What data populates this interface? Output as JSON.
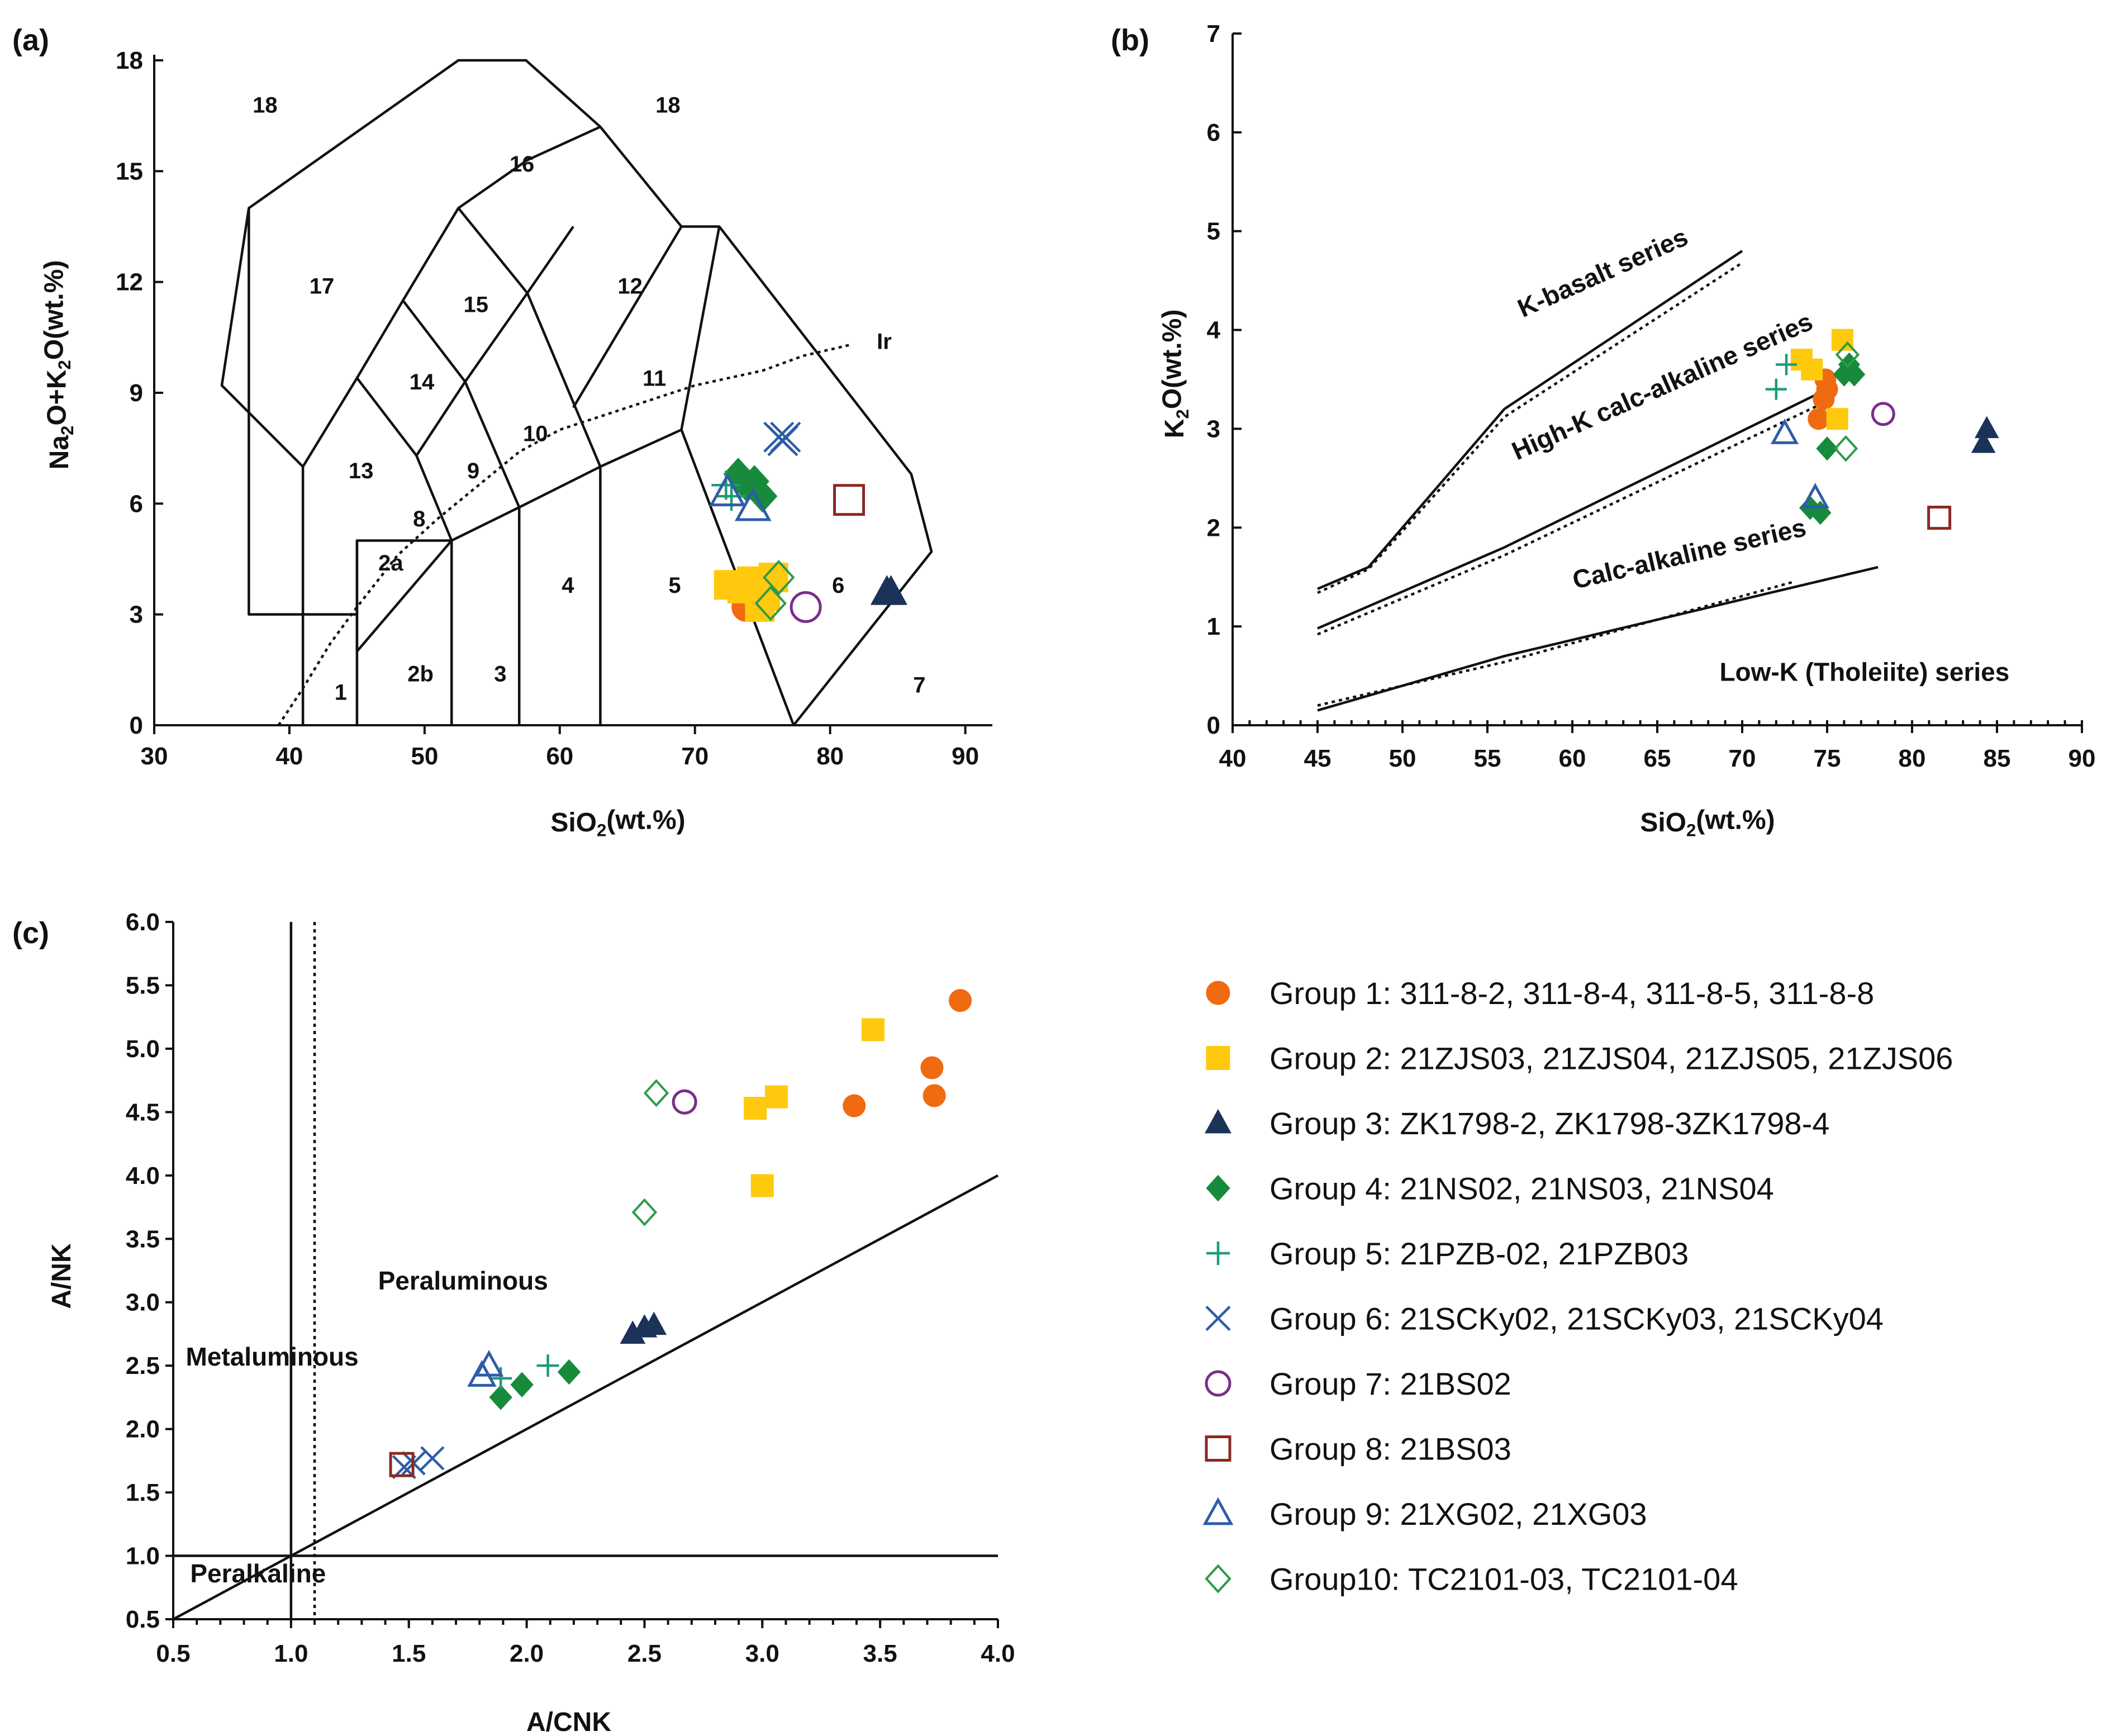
{
  "groups": [
    {
      "id": "g1",
      "legend": "Group 1: 311-8-2, 311-8-4, 311-8-5, 311-8-8",
      "marker": "circle",
      "filled": true,
      "color": "#F06A12"
    },
    {
      "id": "g2",
      "legend": "Group 2: 21ZJS03, 21ZJS04, 21ZJS05, 21ZJS06",
      "marker": "square",
      "filled": true,
      "color": "#FFC90E"
    },
    {
      "id": "g3",
      "legend": "Group 3: ZK1798-2, ZK1798-3ZK1798-4",
      "marker": "triangle",
      "filled": true,
      "color": "#1B3358"
    },
    {
      "id": "g4",
      "legend": "Group 4: 21NS02, 21NS03, 21NS04",
      "marker": "diamond",
      "filled": true,
      "color": "#178A3C"
    },
    {
      "id": "g5",
      "legend": "Group 5: 21PZB-02, 21PZB03",
      "marker": "plus",
      "filled": false,
      "color": "#1E9A7A"
    },
    {
      "id": "g6",
      "legend": "Group 6: 21SCKy02, 21SCKy03, 21SCKy04",
      "marker": "x",
      "filled": false,
      "color": "#2E5CA8"
    },
    {
      "id": "g7",
      "legend": "Group 7: 21BS02",
      "marker": "circle",
      "filled": false,
      "color": "#7A2D8C"
    },
    {
      "id": "g8",
      "legend": "Group 8: 21BS03",
      "marker": "square",
      "filled": false,
      "color": "#8A2A22"
    },
    {
      "id": "g9",
      "legend": "Group 9: 21XG02, 21XG03",
      "marker": "triangle",
      "filled": false,
      "color": "#2E5CA8"
    },
    {
      "id": "g10",
      "legend": "Group10: TC2101-03, TC2101-04",
      "marker": "diamond",
      "filled": false,
      "color": "#2E9A4A"
    }
  ],
  "chart_data": [
    {
      "panel": "(a)",
      "type": "scatter",
      "title": "",
      "xlabel": "SiO₂(wt.%)",
      "ylabel": "Na₂O+K₂O(wt.%)",
      "xlim": [
        30,
        92
      ],
      "ylim": [
        0,
        18
      ],
      "xticks": [
        30,
        40,
        50,
        60,
        70,
        80,
        90
      ],
      "yticks": [
        0,
        3,
        6,
        9,
        12,
        15,
        18
      ],
      "field_boundaries": [
        [
          [
            41,
            0
          ],
          [
            41,
            7
          ],
          [
            45,
            9.4
          ],
          [
            48.4,
            11.5
          ],
          [
            52.5,
            14
          ],
          [
            57.6,
            15.3
          ],
          [
            63,
            16.2
          ]
        ],
        [
          [
            45,
            0
          ],
          [
            45,
            5
          ],
          [
            52,
            5
          ],
          [
            57,
            5.9
          ],
          [
            63,
            7
          ],
          [
            69,
            8
          ],
          [
            77.3,
            0
          ]
        ],
        [
          [
            45,
            5
          ],
          [
            45,
            2
          ]
        ],
        [
          [
            45,
            2
          ],
          [
            52,
            5
          ],
          [
            49.4,
            7.3
          ],
          [
            45,
            9.4
          ]
        ],
        [
          [
            49.4,
            7.3
          ],
          [
            53,
            9.3
          ],
          [
            57.6,
            11.7
          ],
          [
            61,
            13.5
          ]
        ],
        [
          [
            53,
            9.3
          ],
          [
            48.4,
            11.5
          ]
        ],
        [
          [
            57.6,
            11.7
          ],
          [
            52.5,
            14
          ]
        ],
        [
          [
            52,
            5
          ],
          [
            52,
            0
          ]
        ],
        [
          [
            57,
            5.9
          ],
          [
            57,
            0
          ]
        ],
        [
          [
            63,
            7
          ],
          [
            63,
            0
          ]
        ],
        [
          [
            57,
            5.9
          ],
          [
            53,
            9.3
          ]
        ],
        [
          [
            63,
            7
          ],
          [
            57.6,
            11.7
          ]
        ],
        [
          [
            69,
            8
          ],
          [
            71.8,
            13.5
          ]
        ],
        [
          [
            61,
            8.6
          ],
          [
            69,
            13.5
          ]
        ],
        [
          [
            69,
            13.5
          ],
          [
            71.8,
            13.5
          ],
          [
            86,
            6.8
          ],
          [
            87.5,
            4.7
          ],
          [
            77.3,
            0
          ]
        ],
        [
          [
            45,
            3
          ],
          [
            37,
            3
          ],
          [
            37,
            14
          ],
          [
            35,
            9.2
          ],
          [
            41,
            7
          ]
        ],
        [
          [
            37,
            14
          ],
          [
            52.5,
            18
          ],
          [
            57.5,
            18
          ],
          [
            63,
            16.2
          ],
          [
            69,
            13.5
          ]
        ]
      ],
      "field_labels": [
        {
          "t": "18",
          "x": 38.2,
          "y": 16.8
        },
        {
          "t": "18",
          "x": 68,
          "y": 16.8
        },
        {
          "t": "16",
          "x": 57.2,
          "y": 15.2
        },
        {
          "t": "17",
          "x": 42.4,
          "y": 11.9
        },
        {
          "t": "15",
          "x": 53.8,
          "y": 11.4
        },
        {
          "t": "12",
          "x": 65.2,
          "y": 11.9
        },
        {
          "t": "14",
          "x": 49.8,
          "y": 9.3
        },
        {
          "t": "11",
          "x": 67,
          "y": 9.4
        },
        {
          "t": "13",
          "x": 45.3,
          "y": 6.9
        },
        {
          "t": "9",
          "x": 53.6,
          "y": 6.9
        },
        {
          "t": "10",
          "x": 58.2,
          "y": 7.9
        },
        {
          "t": "8",
          "x": 49.6,
          "y": 5.6
        },
        {
          "t": "2a",
          "x": 47.5,
          "y": 4.4
        },
        {
          "t": "4",
          "x": 60.6,
          "y": 3.8
        },
        {
          "t": "5",
          "x": 68.5,
          "y": 3.8
        },
        {
          "t": "6",
          "x": 80.6,
          "y": 3.8
        },
        {
          "t": "1",
          "x": 43.8,
          "y": 0.9
        },
        {
          "t": "2b",
          "x": 49.7,
          "y": 1.4
        },
        {
          "t": "3",
          "x": 55.6,
          "y": 1.4
        },
        {
          "t": "7",
          "x": 86.6,
          "y": 1.1
        },
        {
          "t": "Ir",
          "x": 84,
          "y": 10.4
        }
      ],
      "ir_curve": [
        [
          39.2,
          0
        ],
        [
          41,
          1
        ],
        [
          43,
          2.2
        ],
        [
          45,
          3.2
        ],
        [
          48,
          4.6
        ],
        [
          51,
          5.6
        ],
        [
          54,
          6.5
        ],
        [
          57,
          7.4
        ],
        [
          60,
          8
        ],
        [
          65,
          8.6
        ],
        [
          70,
          9.2
        ],
        [
          75,
          9.6
        ],
        [
          78,
          10
        ],
        [
          81.5,
          10.3
        ]
      ],
      "points": {
        "g1": [
          [
            73.8,
            3.2
          ],
          [
            74.5,
            3.5
          ],
          [
            74,
            3.3
          ]
        ],
        "g2": [
          [
            72.5,
            3.8
          ],
          [
            73.5,
            3.7
          ],
          [
            74.2,
            3.9
          ],
          [
            75.2,
            3.5
          ],
          [
            75.8,
            4.0
          ],
          [
            74.8,
            3.2
          ]
        ],
        "g3": [
          [
            84.2,
            3.6
          ],
          [
            84.5,
            3.6
          ]
        ],
        "g4": [
          [
            73.2,
            6.8
          ],
          [
            74.4,
            6.6
          ],
          [
            75,
            6.2
          ],
          [
            73.8,
            6.5
          ]
        ],
        "g5": [
          [
            72.3,
            6.5
          ],
          [
            72.7,
            6.2
          ]
        ],
        "g6": [
          [
            76.2,
            7.8
          ],
          [
            76.7,
            7.8
          ],
          [
            76.5,
            7.7
          ]
        ],
        "g7": [
          [
            78.2,
            3.2
          ]
        ],
        "g8": [
          [
            81.4,
            6.1
          ]
        ],
        "g9": [
          [
            72.4,
            6.3
          ],
          [
            74.3,
            5.9
          ]
        ],
        "g10": [
          [
            76.2,
            4.0
          ],
          [
            75.6,
            3.3
          ]
        ]
      }
    },
    {
      "panel": "(b)",
      "type": "scatter",
      "title": "",
      "xlabel": "SiO₂(wt.%)",
      "ylabel": "K₂O(wt.%)",
      "xlim": [
        40,
        90
      ],
      "ylim": [
        0,
        7
      ],
      "xticks": [
        40,
        45,
        50,
        55,
        60,
        65,
        70,
        75,
        80,
        85,
        90
      ],
      "yticks": [
        0,
        1,
        2,
        3,
        4,
        5,
        6,
        7
      ],
      "series_lines": {
        "solid": [
          [
            [
              45,
              1.38
            ],
            [
              48,
              1.6
            ],
            [
              56,
              3.2
            ],
            [
              70,
              4.8
            ]
          ],
          [
            [
              45,
              0.98
            ],
            [
              56,
              1.8
            ],
            [
              75,
              3.4
            ]
          ],
          [
            [
              45,
              0.15
            ],
            [
              56,
              0.7
            ],
            [
              78,
              1.6
            ]
          ]
        ],
        "dotted": [
          [
            [
              45,
              1.34
            ],
            [
              48,
              1.58
            ],
            [
              56,
              3.12
            ],
            [
              70,
              4.68
            ]
          ],
          [
            [
              45,
              0.92
            ],
            [
              56,
              1.72
            ],
            [
              75,
              3.28
            ]
          ],
          [
            [
              45,
              0.2
            ],
            [
              56,
              0.64
            ],
            [
              73,
              1.45
            ]
          ]
        ]
      },
      "series_labels": [
        {
          "t": "K-basalt series",
          "x": 62,
          "y": 4.5,
          "rot": -24
        },
        {
          "t": "High-K calc-alkaline series",
          "x": 65.5,
          "y": 3.35,
          "rot": -24
        },
        {
          "t": "Calc-alkaline series",
          "x": 67,
          "y": 1.65,
          "rot": -13
        },
        {
          "t": "Low-K (Tholeiite) series",
          "x": 77.2,
          "y": 0.45,
          "rot": 0
        }
      ],
      "points": {
        "g1": [
          [
            74.9,
            3.5
          ],
          [
            75,
            3.4
          ],
          [
            74.8,
            3.3
          ],
          [
            74.5,
            3.1
          ]
        ],
        "g2": [
          [
            73.5,
            3.7
          ],
          [
            74.1,
            3.6
          ],
          [
            75.9,
            3.9
          ],
          [
            75.6,
            3.1
          ]
        ],
        "g3": [
          [
            84.4,
            3.0
          ],
          [
            84.2,
            2.85
          ]
        ],
        "g4": [
          [
            74,
            2.2
          ],
          [
            74.6,
            2.15
          ],
          [
            75,
            2.8
          ],
          [
            76.3,
            3.65
          ],
          [
            76.6,
            3.55
          ],
          [
            76,
            3.55
          ]
        ],
        "g5": [
          [
            72,
            3.4
          ],
          [
            72.6,
            3.65
          ]
        ],
        "g7": [
          [
            78.3,
            3.15
          ]
        ],
        "g8": [
          [
            81.6,
            2.1
          ]
        ],
        "g9": [
          [
            72.5,
            2.95
          ],
          [
            74.3,
            2.3
          ]
        ],
        "g10": [
          [
            76.2,
            3.75
          ],
          [
            76.1,
            2.8
          ]
        ]
      }
    },
    {
      "panel": "(c)",
      "type": "scatter",
      "title": "",
      "xlabel": "A/CNK",
      "ylabel": "A/NK",
      "xlim": [
        0.5,
        4.0
      ],
      "ylim": [
        0.5,
        6.0
      ],
      "xticks": [
        0.5,
        1.0,
        1.5,
        2.0,
        2.5,
        3.0,
        3.5,
        4.0
      ],
      "yticks": [
        0.5,
        1.0,
        1.5,
        2.0,
        2.5,
        3.0,
        3.5,
        4.0,
        4.5,
        5.0,
        5.5,
        6.0
      ],
      "reference_lines": {
        "solid_vertical_x": 1.0,
        "solid_horizontal_y": 1.0,
        "dotted_vertical_x": 1.1,
        "diagonal": [
          [
            0.5,
            0.5
          ],
          [
            4.0,
            4.0
          ]
        ]
      },
      "region_labels": [
        {
          "t": "Peraluminous",
          "x": 1.73,
          "y": 3.1
        },
        {
          "t": "Metaluminous",
          "x": 0.92,
          "y": 2.5
        },
        {
          "t": "Peralkaline",
          "x": 0.86,
          "y": 0.79
        }
      ],
      "points": {
        "g1": [
          [
            3.84,
            5.38
          ],
          [
            3.72,
            4.85
          ],
          [
            3.73,
            4.63
          ],
          [
            3.39,
            4.55
          ]
        ],
        "g2": [
          [
            3.47,
            5.15
          ],
          [
            3.06,
            4.62
          ],
          [
            2.97,
            4.53
          ],
          [
            3.0,
            3.92
          ]
        ],
        "g3": [
          [
            2.45,
            2.75
          ],
          [
            2.5,
            2.8
          ],
          [
            2.54,
            2.82
          ]
        ],
        "g4": [
          [
            1.89,
            2.25
          ],
          [
            1.98,
            2.35
          ],
          [
            2.18,
            2.45
          ]
        ],
        "g5": [
          [
            1.89,
            2.4
          ],
          [
            2.09,
            2.5
          ]
        ],
        "g6": [
          [
            1.52,
            1.73
          ],
          [
            1.6,
            1.77
          ],
          [
            1.48,
            1.7
          ]
        ],
        "g7": [
          [
            2.67,
            4.58
          ]
        ],
        "g8": [
          [
            1.47,
            1.72
          ]
        ],
        "g9": [
          [
            1.81,
            2.42
          ],
          [
            1.84,
            2.5
          ]
        ],
        "g10": [
          [
            2.55,
            4.65
          ],
          [
            2.5,
            3.71
          ]
        ]
      }
    }
  ]
}
